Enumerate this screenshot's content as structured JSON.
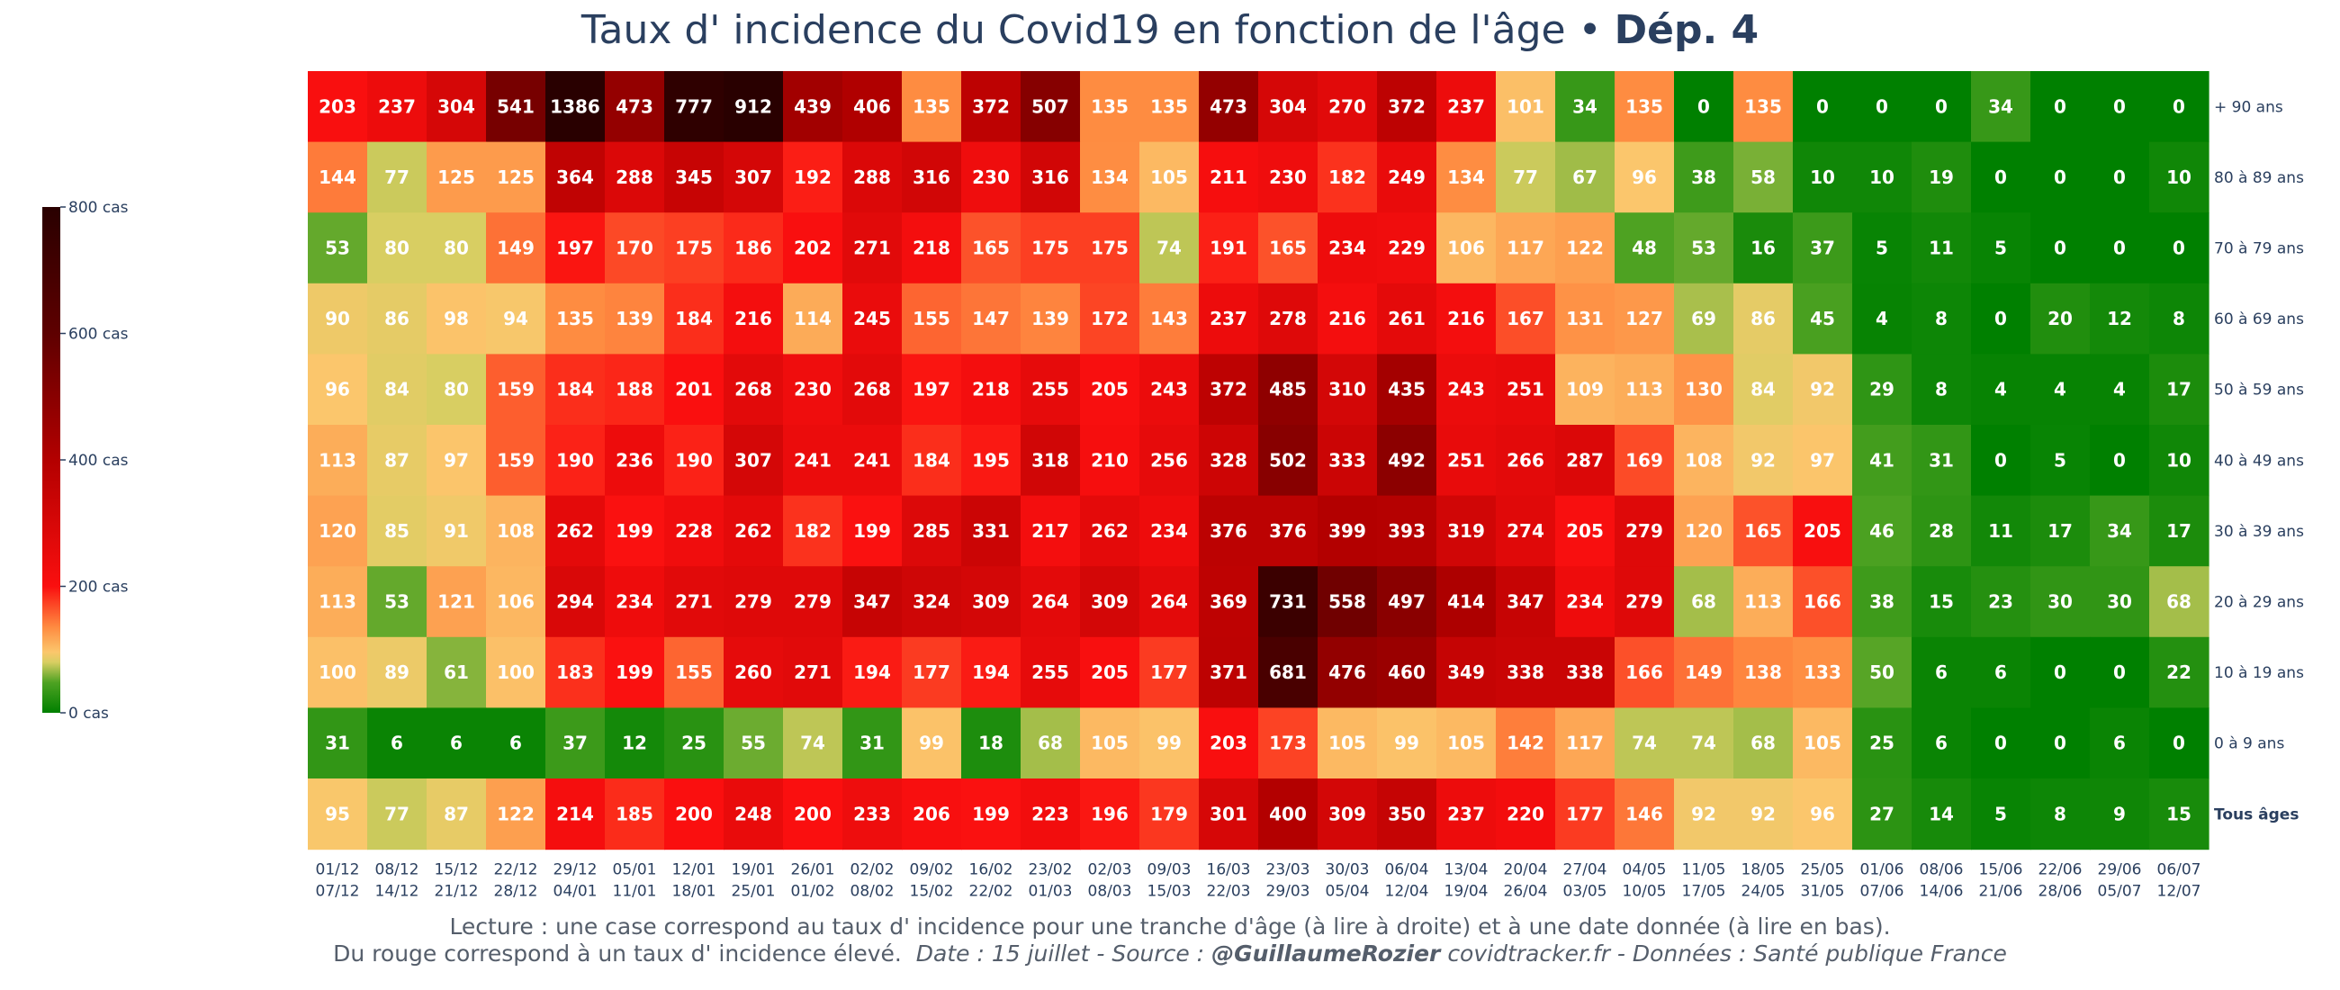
{
  "title": {
    "main": "Taux d' incidence du Covid19 en fonction de l'âge",
    "separator": "•",
    "dep": "Dép. 4"
  },
  "footnote": {
    "line1": "Lecture : une case correspond au taux d' incidence pour une tranche d'âge (à lire à droite) et à une date donnée (à lire en bas).",
    "line2_plain": "Du rouge correspond à un taux d' incidence élevé.",
    "line2_date": "Date : 15 juillet - Source :",
    "line2_handle": "@GuillaumeRozier",
    "line2_rest": "covidtracker.fr - Données : Santé publique France"
  },
  "chart_data": {
    "type": "heatmap",
    "x": [
      [
        "01/12",
        "07/12"
      ],
      [
        "08/12",
        "14/12"
      ],
      [
        "15/12",
        "21/12"
      ],
      [
        "22/12",
        "28/12"
      ],
      [
        "29/12",
        "04/01"
      ],
      [
        "05/01",
        "11/01"
      ],
      [
        "12/01",
        "18/01"
      ],
      [
        "19/01",
        "25/01"
      ],
      [
        "26/01",
        "01/02"
      ],
      [
        "02/02",
        "08/02"
      ],
      [
        "09/02",
        "15/02"
      ],
      [
        "16/02",
        "22/02"
      ],
      [
        "23/02",
        "01/03"
      ],
      [
        "02/03",
        "08/03"
      ],
      [
        "09/03",
        "15/03"
      ],
      [
        "16/03",
        "22/03"
      ],
      [
        "23/03",
        "29/03"
      ],
      [
        "30/03",
        "05/04"
      ],
      [
        "06/04",
        "12/04"
      ],
      [
        "13/04",
        "19/04"
      ],
      [
        "20/04",
        "26/04"
      ],
      [
        "27/04",
        "03/05"
      ],
      [
        "04/05",
        "10/05"
      ],
      [
        "11/05",
        "17/05"
      ],
      [
        "18/05",
        "24/05"
      ],
      [
        "25/05",
        "31/05"
      ],
      [
        "01/06",
        "07/06"
      ],
      [
        "08/06",
        "14/06"
      ],
      [
        "15/06",
        "21/06"
      ],
      [
        "22/06",
        "28/06"
      ],
      [
        "29/06",
        "05/07"
      ],
      [
        "06/07",
        "12/07"
      ]
    ],
    "y": [
      "+ 90 ans",
      "80 à 89 ans",
      "70 à 79 ans",
      "60 à 69 ans",
      "50 à 59 ans",
      "40 à 49 ans",
      "30 à 39 ans",
      "20 à 29 ans",
      "10 à 19 ans",
      "0 à 9 ans",
      "Tous âges"
    ],
    "y_bold": [
      false,
      false,
      false,
      false,
      false,
      false,
      false,
      false,
      false,
      false,
      true
    ],
    "z": [
      [
        203,
        237,
        304,
        541,
        1386,
        473,
        777,
        912,
        439,
        406,
        135,
        372,
        507,
        135,
        135,
        473,
        304,
        270,
        372,
        237,
        101,
        34,
        135,
        0,
        135,
        0,
        0,
        0,
        34,
        0,
        0,
        0
      ],
      [
        144,
        77,
        125,
        125,
        364,
        288,
        345,
        307,
        192,
        288,
        316,
        230,
        316,
        134,
        105,
        211,
        230,
        182,
        249,
        134,
        77,
        67,
        96,
        38,
        58,
        10,
        10,
        19,
        0,
        0,
        0,
        10
      ],
      [
        53,
        80,
        80,
        149,
        197,
        170,
        175,
        186,
        202,
        271,
        218,
        165,
        175,
        175,
        74,
        191,
        165,
        234,
        229,
        106,
        117,
        122,
        48,
        53,
        16,
        37,
        5,
        11,
        5,
        0,
        0,
        0
      ],
      [
        90,
        86,
        98,
        94,
        135,
        139,
        184,
        216,
        114,
        245,
        155,
        147,
        139,
        172,
        143,
        237,
        278,
        216,
        261,
        216,
        167,
        131,
        127,
        69,
        86,
        45,
        4,
        8,
        0,
        20,
        12,
        8
      ],
      [
        96,
        84,
        80,
        159,
        184,
        188,
        201,
        268,
        230,
        268,
        197,
        218,
        255,
        205,
        243,
        372,
        485,
        310,
        435,
        243,
        251,
        109,
        113,
        130,
        84,
        92,
        29,
        8,
        4,
        4,
        4,
        17
      ],
      [
        113,
        87,
        97,
        159,
        190,
        236,
        190,
        307,
        241,
        241,
        184,
        195,
        318,
        210,
        256,
        328,
        502,
        333,
        492,
        251,
        266,
        287,
        169,
        108,
        92,
        97,
        41,
        31,
        0,
        5,
        0,
        10
      ],
      [
        120,
        85,
        91,
        108,
        262,
        199,
        228,
        262,
        182,
        199,
        285,
        331,
        217,
        262,
        234,
        376,
        376,
        399,
        393,
        319,
        274,
        205,
        279,
        120,
        165,
        205,
        46,
        28,
        11,
        17,
        34,
        17
      ],
      [
        113,
        53,
        121,
        106,
        294,
        234,
        271,
        279,
        279,
        347,
        324,
        309,
        264,
        309,
        264,
        369,
        731,
        558,
        497,
        414,
        347,
        234,
        279,
        68,
        113,
        166,
        38,
        15,
        23,
        30,
        30,
        68
      ],
      [
        100,
        89,
        61,
        100,
        183,
        199,
        155,
        260,
        271,
        194,
        177,
        194,
        255,
        205,
        177,
        371,
        681,
        476,
        460,
        349,
        338,
        338,
        166,
        149,
        138,
        133,
        50,
        6,
        6,
        0,
        0,
        22
      ],
      [
        31,
        6,
        6,
        6,
        37,
        12,
        25,
        55,
        74,
        31,
        99,
        18,
        68,
        105,
        99,
        203,
        173,
        105,
        99,
        105,
        142,
        117,
        74,
        74,
        68,
        105,
        25,
        6,
        0,
        0,
        6,
        0
      ],
      [
        95,
        77,
        87,
        122,
        214,
        185,
        200,
        248,
        200,
        233,
        206,
        199,
        223,
        196,
        179,
        301,
        400,
        309,
        350,
        237,
        220,
        177,
        146,
        92,
        92,
        96,
        27,
        14,
        5,
        8,
        9,
        15
      ]
    ],
    "colorscale": {
      "zmin": 0,
      "zmax": 800,
      "stops": [
        [
          0,
          "#008000"
        ],
        [
          0.06,
          "#4ea222"
        ],
        [
          0.1,
          "#d8ce62"
        ],
        [
          0.12,
          "#fbc66c"
        ],
        [
          0.17,
          "#fe8a40"
        ],
        [
          0.25,
          "#fa0f0f"
        ],
        [
          0.5,
          "#b30000"
        ],
        [
          0.75,
          "#5e0000"
        ],
        [
          1,
          "#290000"
        ]
      ]
    },
    "colorbar": {
      "ticks": [
        0,
        200,
        400,
        600,
        800
      ],
      "ticklabels": [
        "0 cas",
        "200 cas",
        "400 cas",
        "600 cas",
        "800 cas"
      ]
    }
  }
}
